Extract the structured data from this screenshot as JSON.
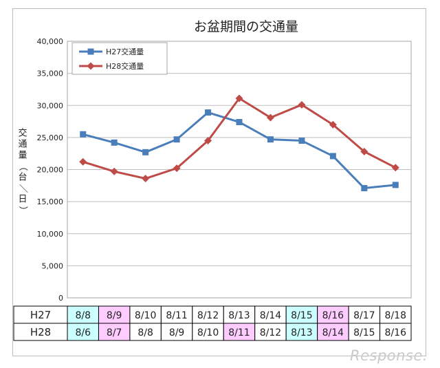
{
  "chart_data": {
    "type": "line",
    "title": "お盆期間の交通量",
    "ylabel": "交通量（台／日）",
    "xlabel": "",
    "ylim": [
      0,
      40000
    ],
    "yticks": [
      "0",
      "5,000",
      "10,000",
      "15,000",
      "20,000",
      "25,000",
      "30,000",
      "35,000",
      "40,000"
    ],
    "legend_position": "top-left",
    "grid": true,
    "series": [
      {
        "name": "H27交通量",
        "color": "#4a7ebb",
        "marker": "square",
        "values": [
          25500,
          24200,
          22700,
          24700,
          28900,
          27400,
          24700,
          24500,
          22100,
          17100,
          17600
        ]
      },
      {
        "name": "H28交通量",
        "color": "#be4b48",
        "marker": "diamond",
        "values": [
          21200,
          19700,
          18600,
          20200,
          24500,
          31100,
          28100,
          30100,
          27000,
          22800,
          20300
        ]
      }
    ],
    "table": {
      "rows": [
        {
          "label": "H27",
          "cells": [
            "8/8",
            "8/9",
            "8/10",
            "8/11",
            "8/12",
            "8/13",
            "8/14",
            "8/15",
            "8/16",
            "8/17",
            "8/18"
          ],
          "highlights": [
            "cyan",
            "pink",
            "",
            "",
            "",
            "",
            "",
            "cyan",
            "pink",
            "",
            ""
          ]
        },
        {
          "label": "H28",
          "cells": [
            "8/6",
            "8/7",
            "8/8",
            "8/9",
            "8/10",
            "8/11",
            "8/12",
            "8/13",
            "8/14",
            "8/15",
            "8/16"
          ],
          "highlights": [
            "cyan",
            "pink",
            "",
            "",
            "",
            "pink",
            "",
            "cyan",
            "pink",
            "",
            ""
          ]
        }
      ]
    }
  },
  "colors": {
    "cyan": "#ccffff",
    "pink": "#ffccff",
    "grid": "#bfbfbf",
    "text": "#222222"
  },
  "watermark": "Response."
}
